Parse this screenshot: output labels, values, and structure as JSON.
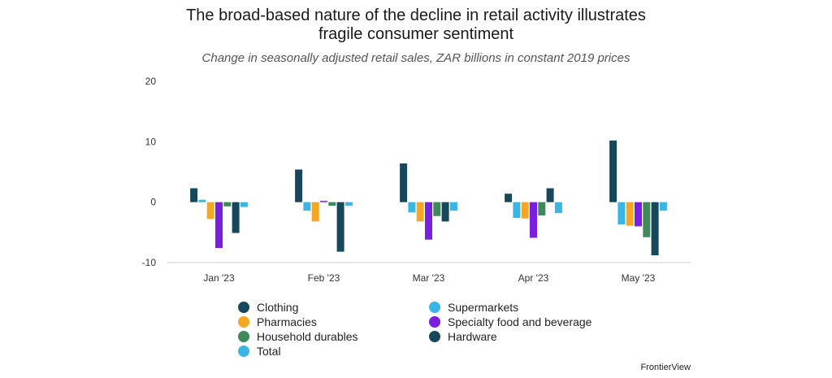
{
  "title_lines": [
    "The broad-based nature of the decline in retail activity illustrates",
    "fragile consumer sentiment"
  ],
  "subtitle": "Change in seasonally adjusted retail sales, ZAR billions in constant 2019 prices",
  "source": "FrontierView",
  "chart_data": {
    "type": "bar",
    "title": "The broad-based nature of the decline in retail activity illustrates fragile consumer sentiment",
    "subtitle": "Change in seasonally adjusted retail sales, ZAR billions in constant 2019 prices",
    "xlabel": "",
    "ylabel": "",
    "ylim": [
      -10,
      20
    ],
    "yticks": [
      -10,
      0,
      10,
      20
    ],
    "grid": false,
    "legend_position": "bottom",
    "categories": [
      "Jan '23",
      "Feb '23",
      "Mar '23",
      "Apr '23",
      "May '23"
    ],
    "series": [
      {
        "name": "Clothing",
        "color": "#17475a",
        "values": [
          2.3,
          5.4,
          6.4,
          1.4,
          10.2
        ]
      },
      {
        "name": "Supermarkets",
        "color": "#3bb5e6",
        "values": [
          0.4,
          -1.4,
          -1.7,
          -2.6,
          -3.7
        ]
      },
      {
        "name": "Pharmacies",
        "color": "#f5a623",
        "values": [
          -2.8,
          -3.2,
          -3.2,
          -2.7,
          -3.9
        ]
      },
      {
        "name": "Specialty food and beverage",
        "color": "#7a1fe0",
        "values": [
          -7.6,
          0.2,
          -6.2,
          -5.9,
          -4.0
        ]
      },
      {
        "name": "Household durables",
        "color": "#3e8a5c",
        "values": [
          -0.7,
          -0.6,
          -2.3,
          -2.2,
          -5.8
        ]
      },
      {
        "name": "Hardware",
        "color": "#17475a",
        "values": [
          -5.1,
          -8.2,
          -3.2,
          2.3,
          -8.8
        ]
      },
      {
        "name": "Total",
        "color": "#3bb5e6",
        "values": [
          -0.8,
          -0.6,
          -1.4,
          -1.8,
          -1.4
        ]
      }
    ]
  }
}
